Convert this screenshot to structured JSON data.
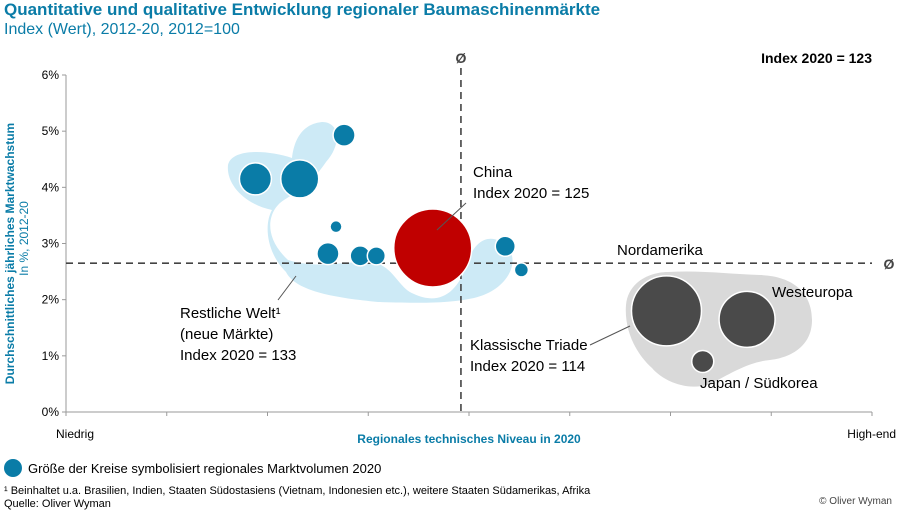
{
  "header": {
    "title": "Quantitative und qualitative Entwicklung regionaler Baumaschinenmärkte",
    "subtitle": "Index (Wert), 2012-20, 2012=100"
  },
  "chart_data": {
    "type": "scatter",
    "title": "Quantitative und qualitative Entwicklung regionaler Baumaschinenmärkte",
    "subtitle": "Index (Wert), 2012-20, 2012=100",
    "xlabel": "Regionales technisches Niveau in 2020",
    "x_low_label": "Niedrig",
    "x_high_label": "High-end",
    "ylabel": "Durchschnittliches jährliches Marktwachstum",
    "ylabel_sub": "In %, 2012-20",
    "ylim": [
      0,
      6
    ],
    "xlim": [
      0,
      100
    ],
    "yticks": [
      "0%",
      "1%",
      "2%",
      "3%",
      "4%",
      "5%",
      "6%"
    ],
    "avg_marker": "Ø",
    "avg_x": 49,
    "avg_y": 2.65,
    "index_note": "Index 2020 = 123",
    "colors": {
      "emerging": "#0a7ca7",
      "china": "#c00000",
      "triad": "#4a4a4a",
      "emerging_area": "#cdeaf6",
      "triad_area": "#d9d9d9"
    },
    "bubbles": [
      {
        "group": "emerging",
        "x": 23.5,
        "y": 4.15,
        "size": 16
      },
      {
        "group": "emerging",
        "x": 29,
        "y": 4.15,
        "size": 19
      },
      {
        "group": "emerging",
        "x": 34.5,
        "y": 4.93,
        "size": 11
      },
      {
        "group": "emerging",
        "x": 33.5,
        "y": 3.3,
        "size": 6
      },
      {
        "group": "emerging",
        "x": 32.5,
        "y": 2.82,
        "size": 11
      },
      {
        "group": "emerging",
        "x": 36.5,
        "y": 2.78,
        "size": 10
      },
      {
        "group": "emerging",
        "x": 38.5,
        "y": 2.78,
        "size": 9
      },
      {
        "group": "emerging",
        "x": 54.5,
        "y": 2.95,
        "size": 10
      },
      {
        "group": "emerging",
        "x": 56.5,
        "y": 2.53,
        "size": 7
      },
      {
        "group": "china",
        "x": 45.5,
        "y": 2.92,
        "size": 39,
        "name": "China"
      },
      {
        "group": "triad",
        "x": 74.5,
        "y": 1.8,
        "size": 35
      },
      {
        "group": "triad",
        "x": 84.5,
        "y": 1.65,
        "size": 28
      },
      {
        "group": "triad",
        "x": 79,
        "y": 0.9,
        "size": 11
      }
    ],
    "annotations": [
      {
        "id": "china",
        "lines": [
          "China",
          "Index 2020 = 125"
        ]
      },
      {
        "id": "restliche",
        "lines": [
          "Restliche Welt¹",
          "(neue Märkte)",
          "Index 2020 = 133"
        ]
      },
      {
        "id": "triade",
        "lines": [
          "Klassische Triade",
          "Index 2020 = 114"
        ]
      },
      {
        "id": "nordamerika",
        "lines": [
          "Nordamerika"
        ]
      },
      {
        "id": "westeuropa",
        "lines": [
          "Westeuropa"
        ]
      },
      {
        "id": "japan",
        "lines": [
          "Japan / Südkorea"
        ]
      }
    ],
    "legend": "Größe der Kreise symbolisiert regionales Marktvolumen 2020"
  },
  "footer": {
    "footnote": "¹ Beinhaltet u.a. Brasilien, Indien, Staaten Südostasiens (Vietnam, Indonesien etc.), weitere Staaten Südamerikas, Afrika",
    "source": "Quelle: Oliver Wyman",
    "copyright": "© Oliver Wyman"
  }
}
